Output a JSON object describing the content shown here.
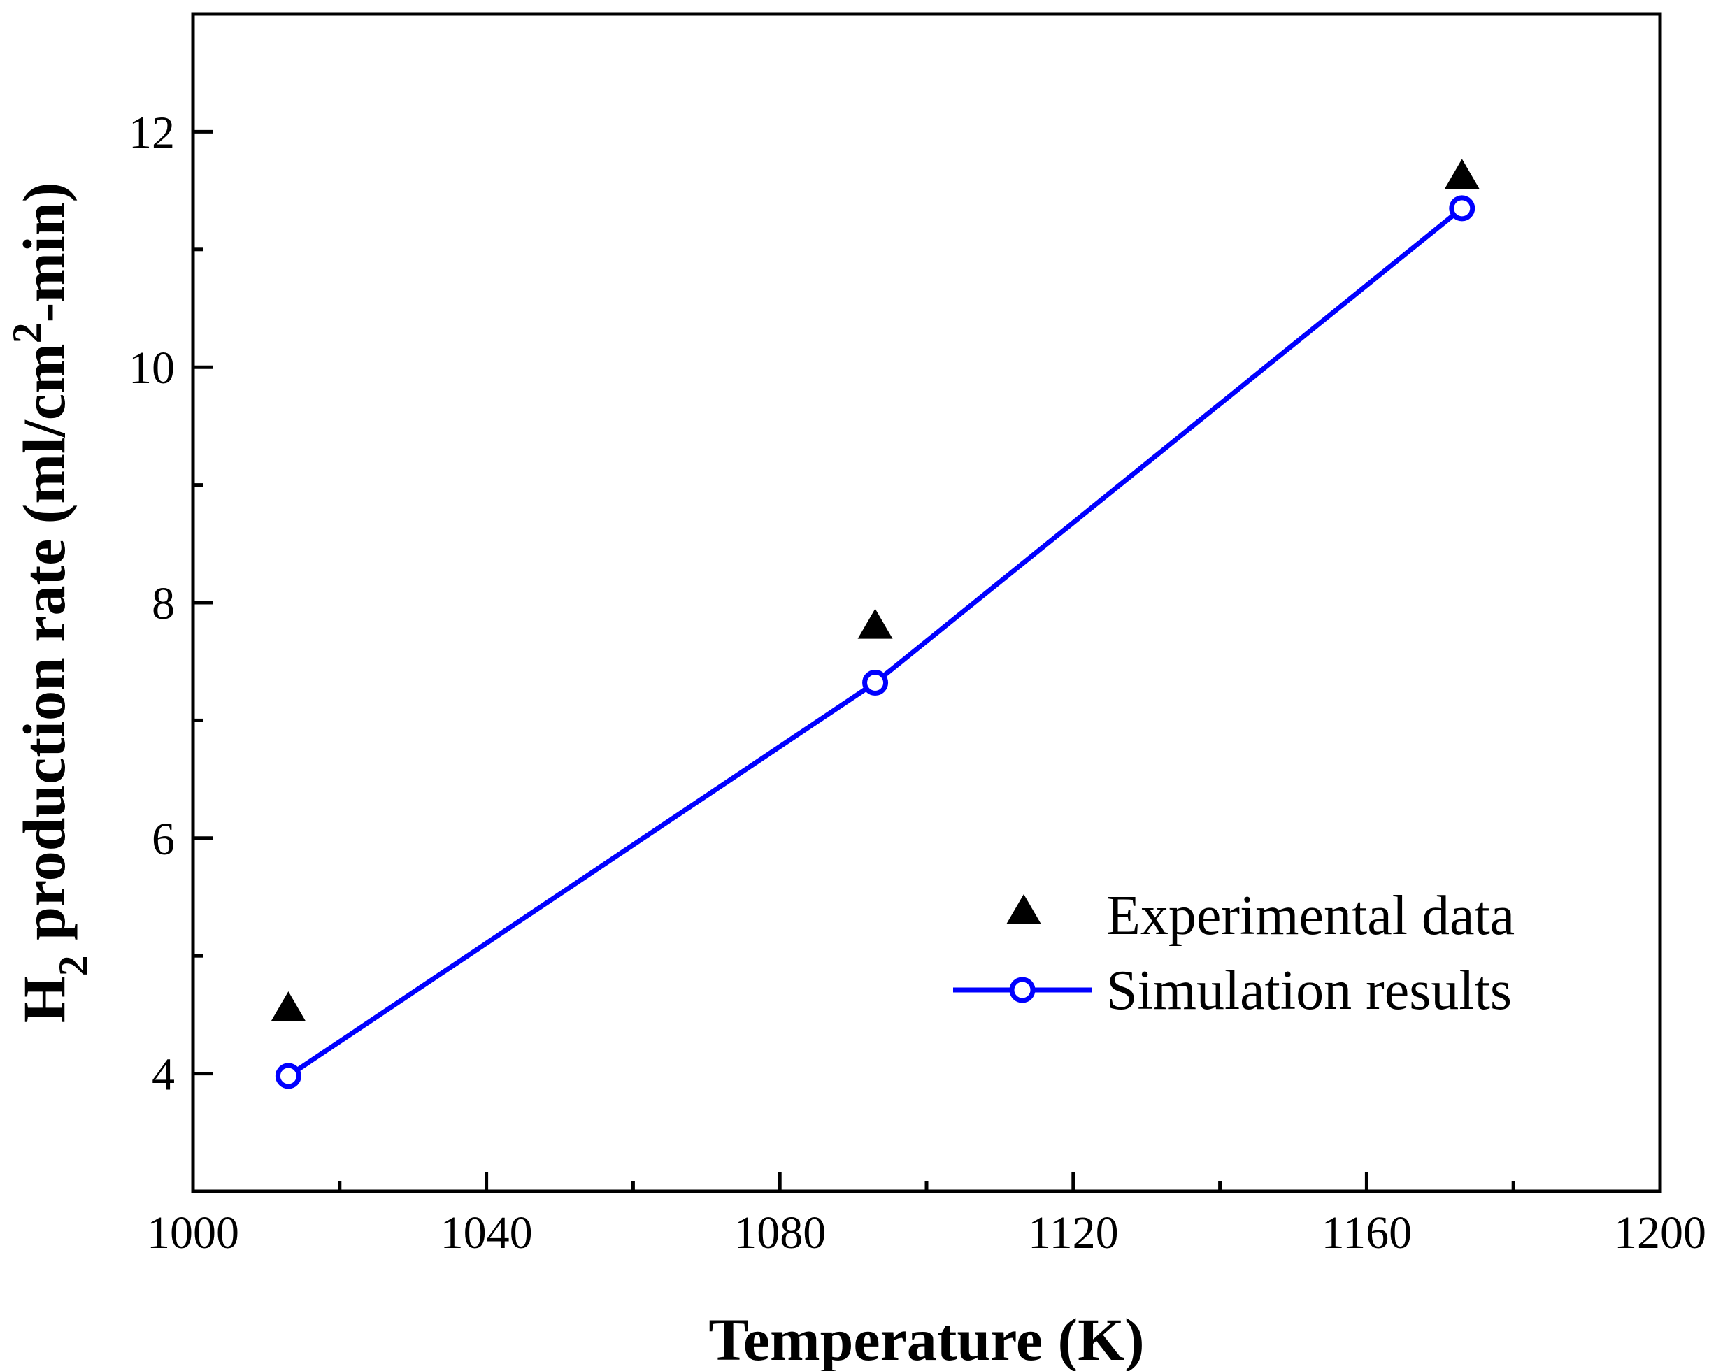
{
  "chart_data": {
    "type": "scatter",
    "title": "",
    "xlabel": "Temperature (K)",
    "ylabel": {
      "prefix": "H",
      "sub": "2",
      "middle": " production rate (ml/cm",
      "sup": "2",
      "suffix": "-min)"
    },
    "xlim": [
      1000,
      1200
    ],
    "ylim": [
      3,
      13
    ],
    "x_major_ticks": [
      1000,
      1040,
      1080,
      1120,
      1160,
      1200
    ],
    "x_minor_ticks": [
      1020,
      1060,
      1100,
      1140,
      1180
    ],
    "y_major_ticks": [
      4,
      6,
      8,
      10,
      12
    ],
    "y_minor_ticks": [
      3,
      5,
      7,
      9,
      11,
      13
    ],
    "grid": false,
    "legend_position": "lower-right",
    "series": [
      {
        "name": "Experimental data",
        "marker": "triangle",
        "line": false,
        "color": "#000000",
        "x": [
          1013,
          1093,
          1173
        ],
        "y": [
          4.55,
          7.8,
          11.62
        ]
      },
      {
        "name": "Simulation results",
        "marker": "open-circle",
        "line": true,
        "color": "#0000ff",
        "x": [
          1013,
          1093,
          1173
        ],
        "y": [
          3.98,
          7.32,
          11.35
        ]
      }
    ]
  }
}
